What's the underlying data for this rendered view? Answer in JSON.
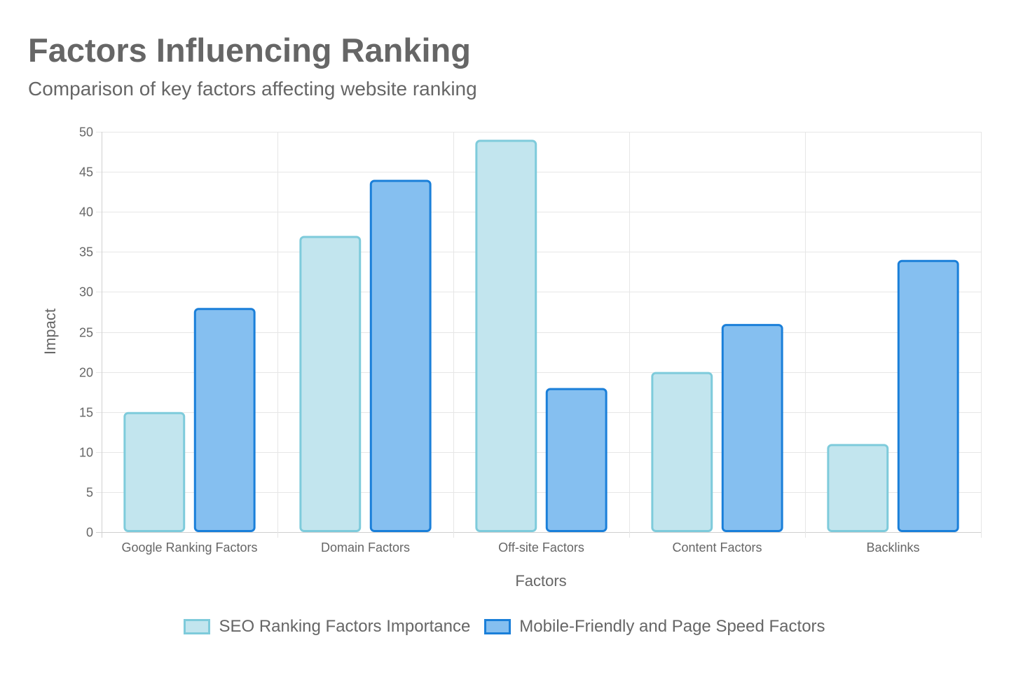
{
  "chart_data": {
    "type": "bar",
    "title": "Factors Influencing Ranking",
    "subtitle": "Comparison of key factors affecting website ranking",
    "xlabel": "Factors",
    "ylabel": "Impact",
    "categories": [
      "Google Ranking Factors",
      "Domain Factors",
      "Off-site Factors",
      "Content Factors",
      "Backlinks"
    ],
    "series": [
      {
        "name": "SEO Ranking Factors Importance",
        "values": [
          15,
          37,
          49,
          20,
          11
        ],
        "fill": "#c2e5ee",
        "stroke": "#7ecbdb"
      },
      {
        "name": "Mobile-Friendly and Page Speed Factors",
        "values": [
          28,
          44,
          18,
          26,
          34
        ],
        "fill": "#85bff0",
        "stroke": "#1a7fd9"
      }
    ],
    "ylim": [
      0,
      50
    ],
    "yticks": [
      0,
      5,
      10,
      15,
      20,
      25,
      30,
      35,
      40,
      45,
      50
    ],
    "grid": true,
    "legend": "bottom"
  }
}
